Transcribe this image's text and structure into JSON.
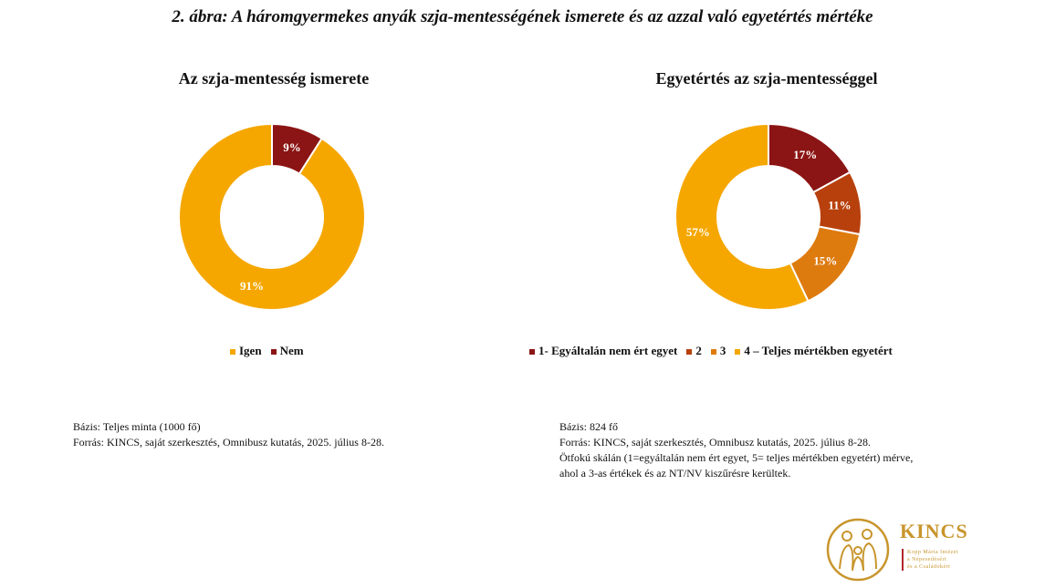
{
  "figure_title": "2. ábra: A háromgyermekes anyák szja-mentességének ismerete és az azzal való egyetértés mértéke",
  "chart_data": [
    {
      "type": "pie",
      "title": "Az szja-mentesség ismerete",
      "categories": [
        "Igen",
        "Nem"
      ],
      "values": [
        91,
        9
      ],
      "labels": [
        "91%",
        "9%"
      ],
      "colors": [
        "#f5a700",
        "#8b1414"
      ],
      "order": [
        1,
        0
      ],
      "legend": [
        {
          "label": "Igen",
          "color": "#f5a700"
        },
        {
          "label": "Nem",
          "color": "#8b1414"
        }
      ],
      "notes": [
        "Bázis: Teljes minta (1000 fő)",
        "Forrás: KINCS, saját szerkesztés, Omnibusz kutatás, 2025. július 8-28."
      ]
    },
    {
      "type": "pie",
      "title": "Egyetértés az szja-mentességgel",
      "categories": [
        "1- Egyáltalán nem ért egyet",
        "2",
        "3",
        "4 – Teljes mértékben egyetért"
      ],
      "values": [
        17,
        11,
        15,
        57
      ],
      "labels": [
        "17%",
        "11%",
        "15%",
        "57%"
      ],
      "colors": [
        "#8b1414",
        "#b8400c",
        "#de7b0f",
        "#f5a700"
      ],
      "order": [
        0,
        1,
        2,
        3
      ],
      "legend": [
        {
          "label": "1- Egyáltalán nem ért egyet",
          "color": "#8b1414"
        },
        {
          "label": "2",
          "color": "#b8400c"
        },
        {
          "label": "3",
          "color": "#de7b0f"
        },
        {
          "label": "4 – Teljes mértékben egyetért",
          "color": "#f5a700"
        }
      ],
      "notes": [
        "Bázis: 824 fő",
        "Forrás: KINCS, saját szerkesztés, Omnibusz kutatás, 2025. július 8-28.",
        "Ötfokú skálán (1=egyáltalán nem ért egyet, 5= teljes mértékben egyetért) mérve, ahol a 3-as értékek és az NT/NV kiszűrésre kerültek."
      ]
    }
  ],
  "logo": {
    "name": "KINCS",
    "sub": [
      "Kopp Mária Intézet",
      "a Népesedésért",
      "és a Családokért"
    ]
  }
}
